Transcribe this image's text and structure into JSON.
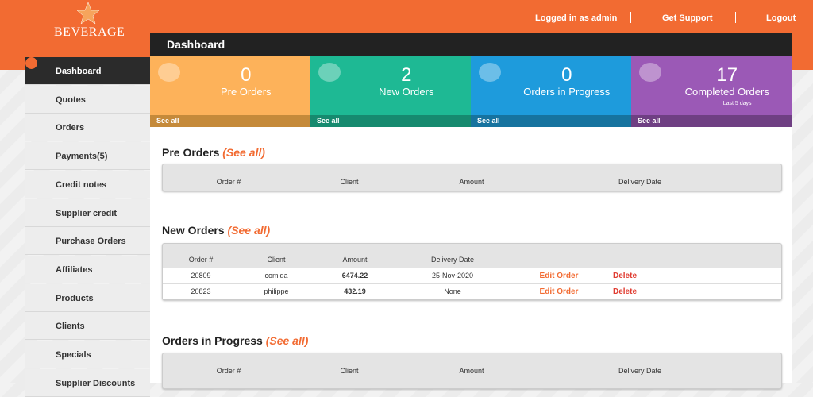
{
  "logo": {
    "text": "BEVERAGE"
  },
  "header": {
    "user": "Logged in as admin",
    "support": "Get Support",
    "logout": "Logout"
  },
  "sidebar": {
    "items": [
      "Dashboard",
      "Quotes",
      "Orders",
      "Payments(5)",
      "Credit notes",
      "Supplier credit",
      "Purchase Orders",
      "Affiliates",
      "Products",
      "Clients",
      "Specials",
      "Supplier Discounts"
    ]
  },
  "panel": {
    "title": "Dashboard"
  },
  "cards": [
    {
      "value": 0,
      "label": "Pre Orders",
      "link": "See all"
    },
    {
      "value": 2,
      "label": "New Orders",
      "link": "See all"
    },
    {
      "value": 0,
      "label": "Orders in Progress",
      "link": "See all"
    },
    {
      "value": 17,
      "label": "Completed Orders",
      "note": "Last 5 days",
      "link": "See all"
    }
  ],
  "sections": [
    {
      "title": "Pre Orders",
      "see_all": "(See all)",
      "columns": [
        "Order #",
        "Client",
        "Amount",
        "Delivery Date"
      ],
      "rows": []
    },
    {
      "title": "New Orders",
      "see_all": "(See all)",
      "columns": [
        "Order #",
        "Client",
        "Amount",
        "Delivery Date"
      ],
      "rows": [
        [
          "20809",
          "comida",
          "6474.22",
          "25-Nov-2020",
          "Edit Order",
          "Delete"
        ],
        [
          "20823",
          "philippe",
          "432.19",
          "None",
          "Edit Order",
          "Delete"
        ]
      ]
    },
    {
      "title": "Orders in Progress",
      "see_all": "(See all)",
      "columns": [
        "Order #",
        "Client",
        "Amount",
        "Delivery Date"
      ],
      "rows": []
    }
  ]
}
